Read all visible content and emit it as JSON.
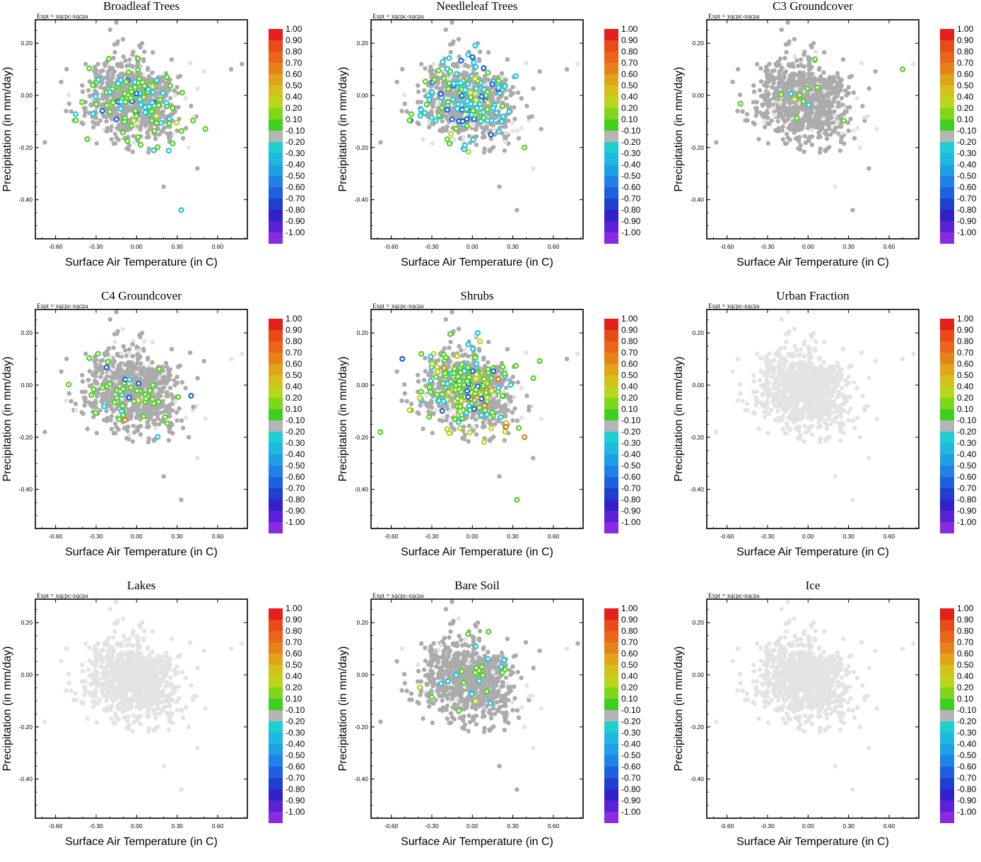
{
  "chart_data": [
    {
      "type": "scatter",
      "title": "Broadleaf Trees",
      "annotation": "Expt = xqcpc-xqcpa",
      "xlabel": "Surface Air Temperature (in C)",
      "ylabel": "Precipitation (in mm/day)",
      "xticks": [
        "-0.60",
        "-0.30",
        "0.00",
        "0.30",
        "0.60"
      ],
      "yticks": [
        "0.20",
        "0.00",
        "-0.20",
        "-0.40"
      ],
      "xlim": [
        -0.75,
        0.82
      ],
      "ylim": [
        -0.55,
        0.29
      ],
      "profile": {
        "green": 0.09,
        "cyan": 0.03,
        "blue": 0.012,
        "yellow": 0.01,
        "orange": 0,
        "lightgray": 0.05
      }
    },
    {
      "type": "scatter",
      "title": "Needleleaf Trees",
      "annotation": "Expt = xqcpc-xqcpa",
      "xlabel": "Surface Air Temperature (in C)",
      "ylabel": "Precipitation (in mm/day)",
      "xticks": [
        "-0.60",
        "-0.30",
        "0.00",
        "0.30",
        "0.60"
      ],
      "yticks": [
        "0.20",
        "0.00",
        "-0.20",
        "-0.40"
      ],
      "xlim": [
        -0.75,
        0.82
      ],
      "ylim": [
        -0.55,
        0.29
      ],
      "profile": {
        "green": 0.04,
        "cyan": 0.09,
        "blue": 0.03,
        "yellow": 0.01,
        "orange": 0,
        "lightgray": 0.12
      }
    },
    {
      "type": "scatter",
      "title": "C3 Groundcover",
      "annotation": "Expt = xqcpc-xqcpa",
      "xlabel": "Surface Air Temperature (in C)",
      "ylabel": "Precipitation (in mm/day)",
      "xticks": [
        "-0.60",
        "-0.30",
        "0.00",
        "0.30",
        "0.60"
      ],
      "yticks": [
        "0.20",
        "0.00",
        "-0.20",
        "-0.40"
      ],
      "xlim": [
        -0.75,
        0.82
      ],
      "ylim": [
        -0.55,
        0.29
      ],
      "profile": {
        "green": 0.012,
        "cyan": 0.003,
        "blue": 0,
        "yellow": 0.004,
        "orange": 0,
        "lightgray": 0.06
      }
    },
    {
      "type": "scatter",
      "title": "C4 Groundcover",
      "annotation": "Expt = xqcpc-xqcpa",
      "xlabel": "Surface Air Temperature (in C)",
      "ylabel": "Precipitation (in mm/day)",
      "xticks": [
        "-0.60",
        "-0.30",
        "0.00",
        "0.30",
        "0.60"
      ],
      "yticks": [
        "0.20",
        "0.00",
        "-0.20",
        "-0.40"
      ],
      "xlim": [
        -0.75,
        0.82
      ],
      "ylim": [
        -0.55,
        0.29
      ],
      "profile": {
        "green": 0.035,
        "cyan": 0.012,
        "blue": 0.004,
        "yellow": 0.006,
        "orange": 0.002,
        "lightgray": 0.08
      }
    },
    {
      "type": "scatter",
      "title": "Shrubs",
      "annotation": "Expt = xqcpc-xqcpa",
      "xlabel": "Surface Air Temperature (in C)",
      "ylabel": "Precipitation (in mm/day)",
      "xticks": [
        "-0.60",
        "-0.30",
        "0.00",
        "0.30",
        "0.60"
      ],
      "yticks": [
        "0.20",
        "0.00",
        "-0.20",
        "-0.40"
      ],
      "xlim": [
        -0.75,
        0.82
      ],
      "ylim": [
        -0.55,
        0.29
      ],
      "profile": {
        "green": 0.12,
        "cyan": 0.04,
        "blue": 0.01,
        "yellow": 0.04,
        "orange": 0.015,
        "lightgray": 0.05
      }
    },
    {
      "type": "scatter",
      "title": "Urban Fraction",
      "annotation": "Expt = xqcpc-xqcpa",
      "xlabel": "Surface Air Temperature (in C)",
      "ylabel": "Precipitation (in mm/day)",
      "xticks": [
        "-0.60",
        "-0.30",
        "0.00",
        "0.30",
        "0.60"
      ],
      "yticks": [
        "0.20",
        "0.00",
        "-0.20",
        "-0.40"
      ],
      "xlim": [
        -0.75,
        0.82
      ],
      "ylim": [
        -0.55,
        0.29
      ],
      "profile": {
        "green": 0,
        "cyan": 0,
        "blue": 0,
        "yellow": 0,
        "orange": 0,
        "lightgray": 1
      }
    },
    {
      "type": "scatter",
      "title": "Lakes",
      "annotation": "Expt = xqcpc-xqcpa",
      "xlabel": "Surface Air Temperature (in C)",
      "ylabel": "Precipitation (in mm/day)",
      "xticks": [
        "-0.60",
        "-0.30",
        "0.00",
        "0.30",
        "0.60"
      ],
      "yticks": [
        "0.20",
        "0.00",
        "-0.20",
        "-0.40"
      ],
      "xlim": [
        -0.75,
        0.82
      ],
      "ylim": [
        -0.55,
        0.29
      ],
      "profile": {
        "green": 0,
        "cyan": 0,
        "blue": 0,
        "yellow": 0,
        "orange": 0,
        "lightgray": 1
      }
    },
    {
      "type": "scatter",
      "title": "Bare Soil",
      "annotation": "Expt = xqcpc-xqcpa",
      "xlabel": "Surface Air Temperature (in C)",
      "ylabel": "Precipitation (in mm/day)",
      "xticks": [
        "-0.60",
        "-0.30",
        "0.00",
        "0.30",
        "0.60"
      ],
      "yticks": [
        "0.20",
        "0.00",
        "-0.20",
        "-0.40"
      ],
      "xlim": [
        -0.75,
        0.82
      ],
      "ylim": [
        -0.55,
        0.29
      ],
      "profile": {
        "green": 0.012,
        "cyan": 0.006,
        "blue": 0,
        "yellow": 0.003,
        "orange": 0,
        "lightgray": 0.06
      }
    },
    {
      "type": "scatter",
      "title": "Ice",
      "annotation": "Expt = xqcpc-xqcpa",
      "xlabel": "Surface Air Temperature (in C)",
      "ylabel": "Precipitation (in mm/day)",
      "xticks": [
        "-0.60",
        "-0.30",
        "0.00",
        "0.30",
        "0.60"
      ],
      "yticks": [
        "0.20",
        "0.00",
        "-0.20",
        "-0.40"
      ],
      "xlim": [
        -0.75,
        0.82
      ],
      "ylim": [
        -0.55,
        0.29
      ],
      "profile": {
        "green": 0,
        "cyan": 0,
        "blue": 0,
        "yellow": 0,
        "orange": 0,
        "lightgray": 1
      }
    }
  ],
  "colorbar": {
    "labels": [
      "1.00",
      "0.90",
      "0.80",
      "0.70",
      "0.60",
      "0.50",
      "0.40",
      "0.20",
      "0.10",
      "-0.10",
      "-0.20",
      "-0.30",
      "-0.40",
      "-0.50",
      "-0.60",
      "-0.70",
      "-0.80",
      "-0.90",
      "-1.00"
    ],
    "colors": [
      "#e3201b",
      "#e84a1a",
      "#e8651a",
      "#e6821a",
      "#e0a319",
      "#d4c21a",
      "#b9d61c",
      "#7fd61c",
      "#3fcf1e",
      "#b5b5b5",
      "#1fcfcf",
      "#1fb9df",
      "#1f9fe4",
      "#1f82e4",
      "#1f60df",
      "#1f40cf",
      "#3420c8",
      "#5a22d8",
      "#8a2be2"
    ]
  },
  "colors": {
    "gray": "#ababab",
    "lightgray": "#e3e3e3",
    "green": "#4fd21e",
    "cyan": "#1cc6dc",
    "blue": "#1f5fd8",
    "yellow": "#b9d21c",
    "orange": "#e07a1a"
  }
}
